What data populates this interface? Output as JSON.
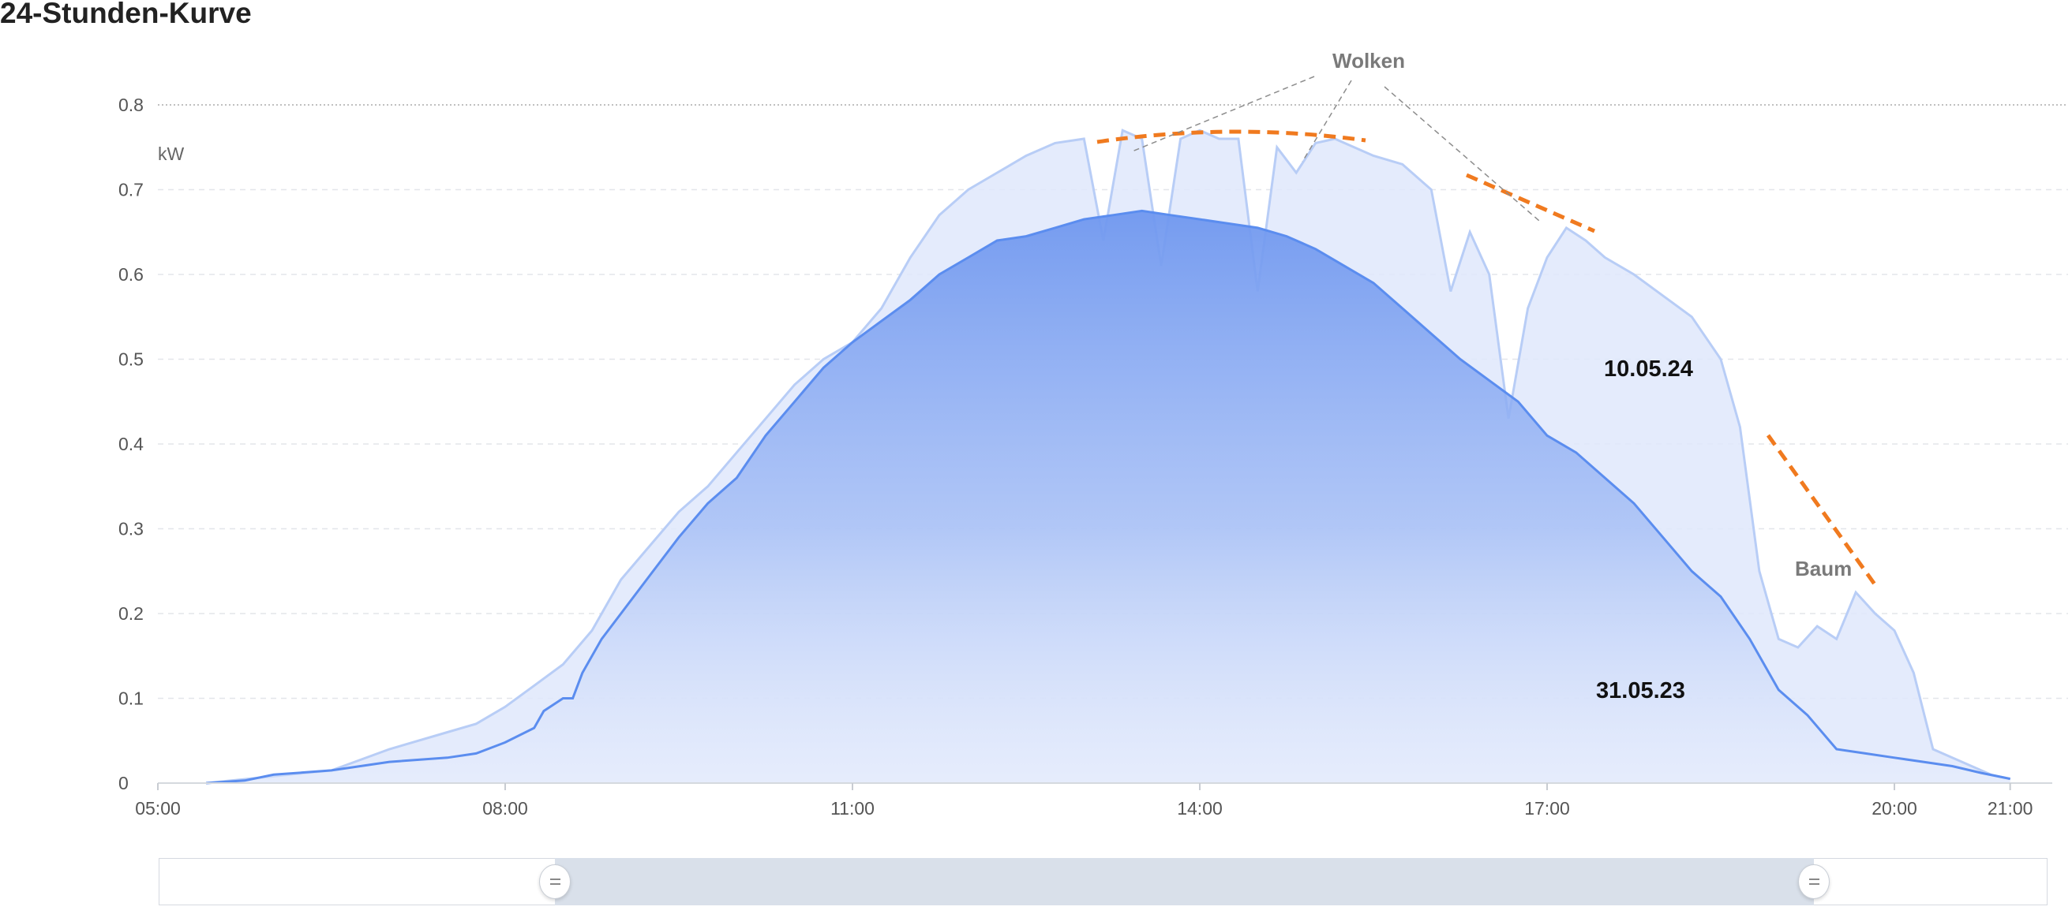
{
  "title": "24-Stunden-Kurve",
  "chart_data": {
    "type": "area",
    "ylabel": "kW",
    "ylim": [
      0,
      0.8
    ],
    "y_ticks": [
      "0",
      "0.1",
      "0.2",
      "0.3",
      "0.4",
      "0.5",
      "0.6",
      "0.7",
      "0.8"
    ],
    "x_ticks": [
      "05:00",
      "08:00",
      "11:00",
      "14:00",
      "17:00",
      "20:00",
      "21:00"
    ],
    "grid": true,
    "colors": {
      "series_2023": "#5b8def",
      "series_2024": "#b8cdf6",
      "annotation_line": "#f07a1f"
    },
    "series": [
      {
        "name": "31.05.23",
        "x": [
          "05:25",
          "05:45",
          "06:00",
          "06:30",
          "07:00",
          "07:30",
          "07:45",
          "08:00",
          "08:15",
          "08:20",
          "08:30",
          "08:35",
          "08:40",
          "08:50",
          "09:00",
          "09:15",
          "09:30",
          "09:45",
          "10:00",
          "10:15",
          "10:30",
          "10:45",
          "11:00",
          "11:15",
          "11:30",
          "11:45",
          "12:00",
          "12:15",
          "12:30",
          "12:45",
          "13:00",
          "13:15",
          "13:30",
          "13:45",
          "14:00",
          "14:15",
          "14:30",
          "14:45",
          "15:00",
          "15:15",
          "15:30",
          "15:45",
          "16:00",
          "16:15",
          "16:30",
          "16:45",
          "17:00",
          "17:15",
          "17:30",
          "17:45",
          "18:00",
          "18:15",
          "18:30",
          "18:45",
          "19:00",
          "19:15",
          "19:30",
          "19:45",
          "20:00",
          "20:15",
          "20:30",
          "20:45",
          "21:00"
        ],
        "values": [
          0,
          0.003,
          0.01,
          0.015,
          0.025,
          0.03,
          0.035,
          0.048,
          0.065,
          0.085,
          0.1,
          0.1,
          0.13,
          0.17,
          0.2,
          0.245,
          0.29,
          0.33,
          0.36,
          0.41,
          0.45,
          0.49,
          0.52,
          0.545,
          0.57,
          0.6,
          0.62,
          0.64,
          0.645,
          0.655,
          0.665,
          0.67,
          0.675,
          0.67,
          0.665,
          0.66,
          0.655,
          0.645,
          0.63,
          0.61,
          0.59,
          0.56,
          0.53,
          0.5,
          0.475,
          0.45,
          0.41,
          0.39,
          0.36,
          0.33,
          0.29,
          0.25,
          0.22,
          0.17,
          0.11,
          0.08,
          0.04,
          0.035,
          0.03,
          0.025,
          0.02,
          0.012,
          0.005
        ]
      },
      {
        "name": "10.05.24",
        "x": [
          "05:25",
          "06:00",
          "06:30",
          "07:00",
          "07:30",
          "07:45",
          "08:00",
          "08:15",
          "08:30",
          "08:45",
          "09:00",
          "09:15",
          "09:30",
          "09:45",
          "10:00",
          "10:15",
          "10:30",
          "10:45",
          "11:00",
          "11:15",
          "11:30",
          "11:45",
          "12:00",
          "12:15",
          "12:30",
          "12:45",
          "13:00",
          "13:10",
          "13:20",
          "13:30",
          "13:40",
          "13:50",
          "14:00",
          "14:10",
          "14:20",
          "14:30",
          "14:40",
          "14:50",
          "15:00",
          "15:10",
          "15:20",
          "15:30",
          "15:45",
          "16:00",
          "16:10",
          "16:20",
          "16:30",
          "16:40",
          "16:50",
          "17:00",
          "17:10",
          "17:20",
          "17:30",
          "17:45",
          "18:00",
          "18:15",
          "18:30",
          "18:40",
          "18:50",
          "19:00",
          "19:10",
          "19:20",
          "19:30",
          "19:40",
          "19:50",
          "20:00",
          "20:10",
          "20:20",
          "20:30",
          "20:40",
          "20:50",
          "21:00"
        ],
        "values": [
          0,
          0.008,
          0.015,
          0.04,
          0.06,
          0.07,
          0.09,
          0.115,
          0.14,
          0.18,
          0.24,
          0.28,
          0.32,
          0.35,
          0.39,
          0.43,
          0.47,
          0.5,
          0.52,
          0.56,
          0.62,
          0.67,
          0.7,
          0.72,
          0.74,
          0.755,
          0.76,
          0.64,
          0.77,
          0.76,
          0.61,
          0.76,
          0.77,
          0.76,
          0.76,
          0.58,
          0.75,
          0.72,
          0.755,
          0.76,
          0.75,
          0.74,
          0.73,
          0.7,
          0.58,
          0.65,
          0.6,
          0.43,
          0.56,
          0.62,
          0.655,
          0.64,
          0.62,
          0.6,
          0.575,
          0.55,
          0.5,
          0.42,
          0.25,
          0.17,
          0.16,
          0.185,
          0.17,
          0.225,
          0.2,
          0.18,
          0.13,
          0.04,
          0.03,
          0.02,
          0.01,
          0.005
        ]
      }
    ],
    "annotations": [
      "Wolken",
      "Baum"
    ],
    "series_labels": [
      "10.05.24",
      "31.05.23"
    ]
  },
  "slider": {
    "start": "08:15",
    "end": "19:00"
  }
}
